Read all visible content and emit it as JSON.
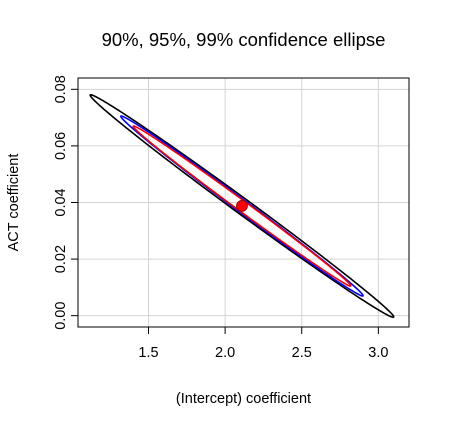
{
  "chart_data": {
    "type": "line",
    "title": "90%, 95%, 99% confidence ellipse",
    "xlabel": "(Intercept) coefficient",
    "ylabel": "ACT coefficient",
    "xlim": [
      1.04,
      3.2
    ],
    "ylim": [
      -0.004,
      0.084
    ],
    "x_ticks": [
      1.5,
      2.0,
      2.5,
      3.0
    ],
    "x_tick_labels": [
      "1.5",
      "2.0",
      "2.5",
      "3.0"
    ],
    "y_ticks": [
      0.0,
      0.02,
      0.04,
      0.06,
      0.08
    ],
    "y_tick_labels": [
      "0.00",
      "0.02",
      "0.04",
      "0.06",
      "0.08"
    ],
    "grid": true,
    "legend": "none",
    "center": {
      "x": 2.11,
      "y": 0.0388,
      "color": "#ff0000"
    },
    "series": [
      {
        "level": 0.99,
        "color": "#000000",
        "ends": [
          [
            1.12,
            0.078
          ],
          [
            3.1,
            -0.0005
          ]
        ],
        "half_width_y": 0.0034
      },
      {
        "level": 0.95,
        "color": "#0000ff",
        "ends": [
          [
            1.32,
            0.0705
          ],
          [
            2.9,
            0.007
          ]
        ],
        "half_width_y": 0.0027
      },
      {
        "level": 0.9,
        "color": "#ff0000",
        "ends": [
          [
            1.4,
            0.067
          ],
          [
            2.82,
            0.0105
          ]
        ],
        "half_width_y": 0.0023
      }
    ]
  }
}
